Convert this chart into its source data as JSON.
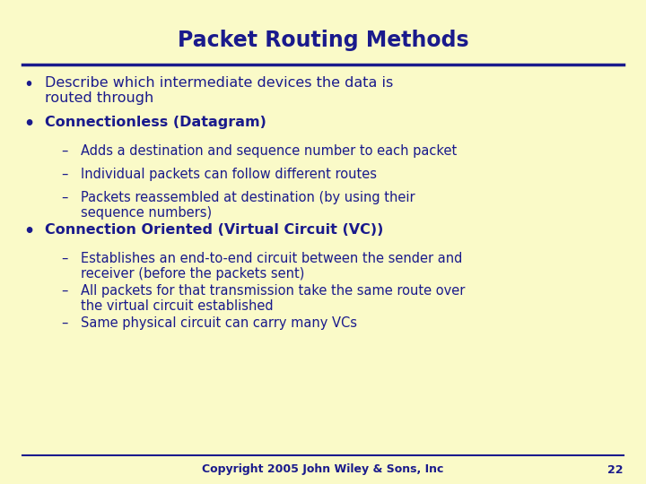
{
  "title": "Packet Routing Methods",
  "background_color": "#FAFAC8",
  "title_color": "#1a1a8c",
  "text_color": "#1a1a8c",
  "line_color": "#1a1a8c",
  "footer_text": "Copyright 2005 John Wiley & Sons, Inc",
  "footer_page": "22",
  "title_fontsize": 17,
  "bullet_fontsize": 11.5,
  "sub_fontsize": 10.5,
  "footer_fontsize": 9,
  "content": [
    {
      "type": "bullet",
      "text": "Describe which intermediate devices the data is\nrouted through",
      "bold": false
    },
    {
      "type": "bullet",
      "text": "Connectionless (Datagram)",
      "bold": true
    },
    {
      "type": "sub",
      "text": "Adds a destination and sequence number to each packet"
    },
    {
      "type": "sub",
      "text": "Individual packets can follow different routes"
    },
    {
      "type": "sub",
      "text": "Packets reassembled at destination (by using their\nsequence numbers)"
    },
    {
      "type": "bullet",
      "text": "Connection Oriented (Virtual Circuit (VC))",
      "bold": true
    },
    {
      "type": "sub",
      "text": "Establishes an end-to-end circuit between the sender and\nreceiver (before the packets sent)"
    },
    {
      "type": "sub",
      "text": "All packets for that transmission take the same route over\nthe virtual circuit established"
    },
    {
      "type": "sub",
      "text": "Same physical circuit can carry many VCs"
    }
  ]
}
